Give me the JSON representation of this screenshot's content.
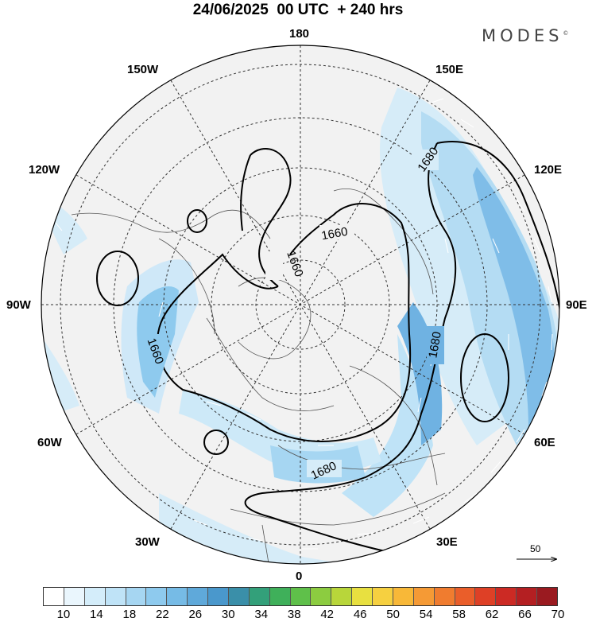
{
  "header": {
    "title": "24/06/2025  00 UTC  + 240 hrs",
    "brand": "MODES",
    "brand_mark": "©"
  },
  "map": {
    "projection": "north-polar-stereographic",
    "longitude_labels": {
      "top": "180",
      "bottom": "0",
      "left": "90W",
      "right": "90E",
      "upper_left_1": "150W",
      "upper_left_2": "120W",
      "lower_left_1": "60W",
      "lower_left_2": "30W",
      "upper_right_1": "150E",
      "upper_right_2": "120E",
      "lower_right_1": "60E",
      "lower_right_2": "30E"
    },
    "contour_labels": [
      "1660",
      "1660",
      "1680",
      "1680",
      "1660",
      "1680"
    ],
    "reference_vector": "50",
    "colors": {
      "land_shading": "#f2f2f2",
      "light_blue": "#d6ecf8",
      "mid_blue": "#9fd1ef",
      "dark_blue": "#4e9bd3",
      "contour": "#000000"
    }
  },
  "legend": {
    "colors": [
      "#ffffff",
      "#eaf6fd",
      "#d4edfa",
      "#bfe3f7",
      "#a6d6f2",
      "#8ecaee",
      "#76bbe6",
      "#5fa9da",
      "#4a98cc",
      "#3a8fa9",
      "#33a07a",
      "#3fb05a",
      "#5fc04a",
      "#8ccc40",
      "#b8d63a",
      "#e8e040",
      "#f6d040",
      "#f8b838",
      "#f59a35",
      "#f07c2f",
      "#ea5e2a",
      "#de4026",
      "#cc2a24",
      "#b41f22",
      "#9a1a20"
    ],
    "tick_labels": [
      "10",
      "14",
      "18",
      "22",
      "26",
      "30",
      "34",
      "38",
      "42",
      "46",
      "50",
      "54",
      "58",
      "62",
      "66",
      "70"
    ]
  }
}
